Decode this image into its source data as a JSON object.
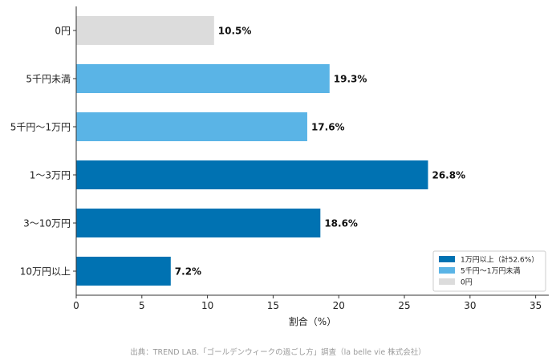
{
  "chart_data": {
    "type": "bar",
    "orientation": "horizontal",
    "categories": [
      "0円",
      "5千円未満",
      "5千円〜1万円",
      "1〜3万円",
      "3〜10万円",
      "10万円以上"
    ],
    "values": [
      10.5,
      19.3,
      17.6,
      26.8,
      18.6,
      7.2
    ],
    "value_labels": [
      "10.5%",
      "19.3%",
      "17.6%",
      "26.8%",
      "18.6%",
      "7.2%"
    ],
    "bar_colors": [
      "#dcdcdc",
      "#5ab4e6",
      "#5ab4e6",
      "#0072b2",
      "#0072b2",
      "#0072b2"
    ],
    "xlabel": "割合（%）",
    "ylabel": "",
    "xlim": [
      0,
      36
    ],
    "xticks": [
      0,
      5,
      10,
      15,
      20,
      25,
      30,
      35
    ],
    "grid": false,
    "legend": {
      "position": "bottom-right",
      "entries": [
        {
          "label": "1万円以上（計52.6%）",
          "color": "#0072b2"
        },
        {
          "label": "5千円〜1万円未満",
          "color": "#5ab4e6"
        },
        {
          "label": "0円",
          "color": "#dcdcdc"
        }
      ]
    },
    "source": "出典：TREND LAB.「ゴールデンウィークの過ごし方」調査（la belle vie 株式会社）"
  }
}
